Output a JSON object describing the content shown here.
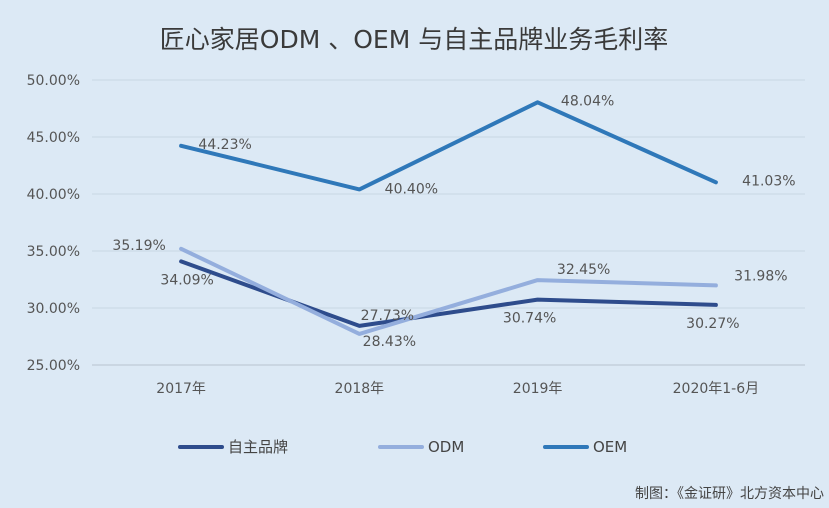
{
  "chart_data": {
    "type": "line",
    "title": "匠心家居ODM 、OEM 与自主品牌业务毛利率",
    "categories": [
      "2017年",
      "2018年",
      "2019年",
      "2020年1-6月"
    ],
    "ylim": [
      25,
      50
    ],
    "yticks": [
      "25.00%",
      "30.00%",
      "35.00%",
      "40.00%",
      "45.00%",
      "50.00%"
    ],
    "grid": true,
    "legend_position": "bottom",
    "series": [
      {
        "name": "自主品牌",
        "color": "#2e4c8c",
        "values": [
          34.09,
          28.43,
          30.74,
          30.27
        ],
        "labels": [
          "34.09%",
          "28.43%",
          "30.74%",
          "30.27%"
        ]
      },
      {
        "name": "ODM",
        "color": "#94aedd",
        "values": [
          35.19,
          27.73,
          32.45,
          31.98
        ],
        "labels": [
          "35.19%",
          "27.73%",
          "32.45%",
          "31.98%"
        ]
      },
      {
        "name": "OEM",
        "color": "#2f78b9",
        "values": [
          44.23,
          40.4,
          48.04,
          41.03
        ],
        "labels": [
          "44.23%",
          "40.40%",
          "48.04%",
          "41.03%"
        ]
      }
    ]
  },
  "credit": "制图：《金证研》北方资本中心"
}
